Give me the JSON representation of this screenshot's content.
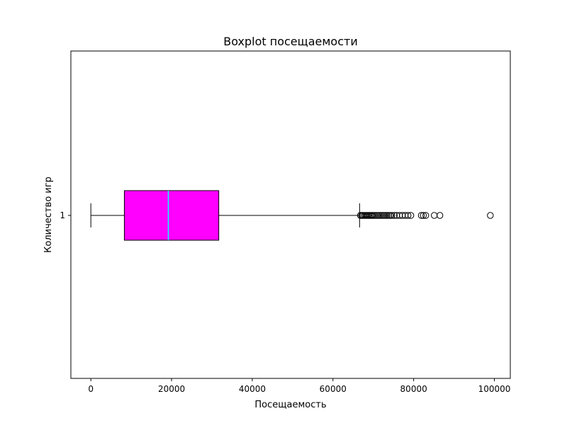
{
  "chart_data": {
    "type": "boxplot",
    "orientation": "horizontal",
    "title": "Boxplot посещаемости",
    "xlabel": "Посещаемость",
    "ylabel": "Количество игр",
    "xlim": [
      -4950,
      103950
    ],
    "x_ticks": [
      0,
      20000,
      40000,
      60000,
      80000,
      100000
    ],
    "y_ticks": [
      "1"
    ],
    "grid": false,
    "series": [
      {
        "category": "1",
        "whisker_low": 0,
        "q1": 8300,
        "median": 19200,
        "q3": 31700,
        "whisker_high": 66600,
        "outliers": [
          66800,
          67100,
          67400,
          67700,
          68000,
          68300,
          68600,
          68900,
          69200,
          69500,
          69800,
          70200,
          70600,
          71000,
          71400,
          71800,
          72200,
          72600,
          73000,
          73400,
          73800,
          74200,
          74600,
          75200,
          75800,
          76500,
          77200,
          77900,
          78600,
          79300,
          81900,
          82400,
          83000,
          85100,
          86500,
          99000
        ]
      }
    ],
    "colors": {
      "box_fill": "#ff00ff",
      "box_edge": "#000000",
      "median": "#00ffff",
      "whisker": "#000000",
      "outlier_edge": "#000000",
      "outlier_fill": "none"
    }
  }
}
